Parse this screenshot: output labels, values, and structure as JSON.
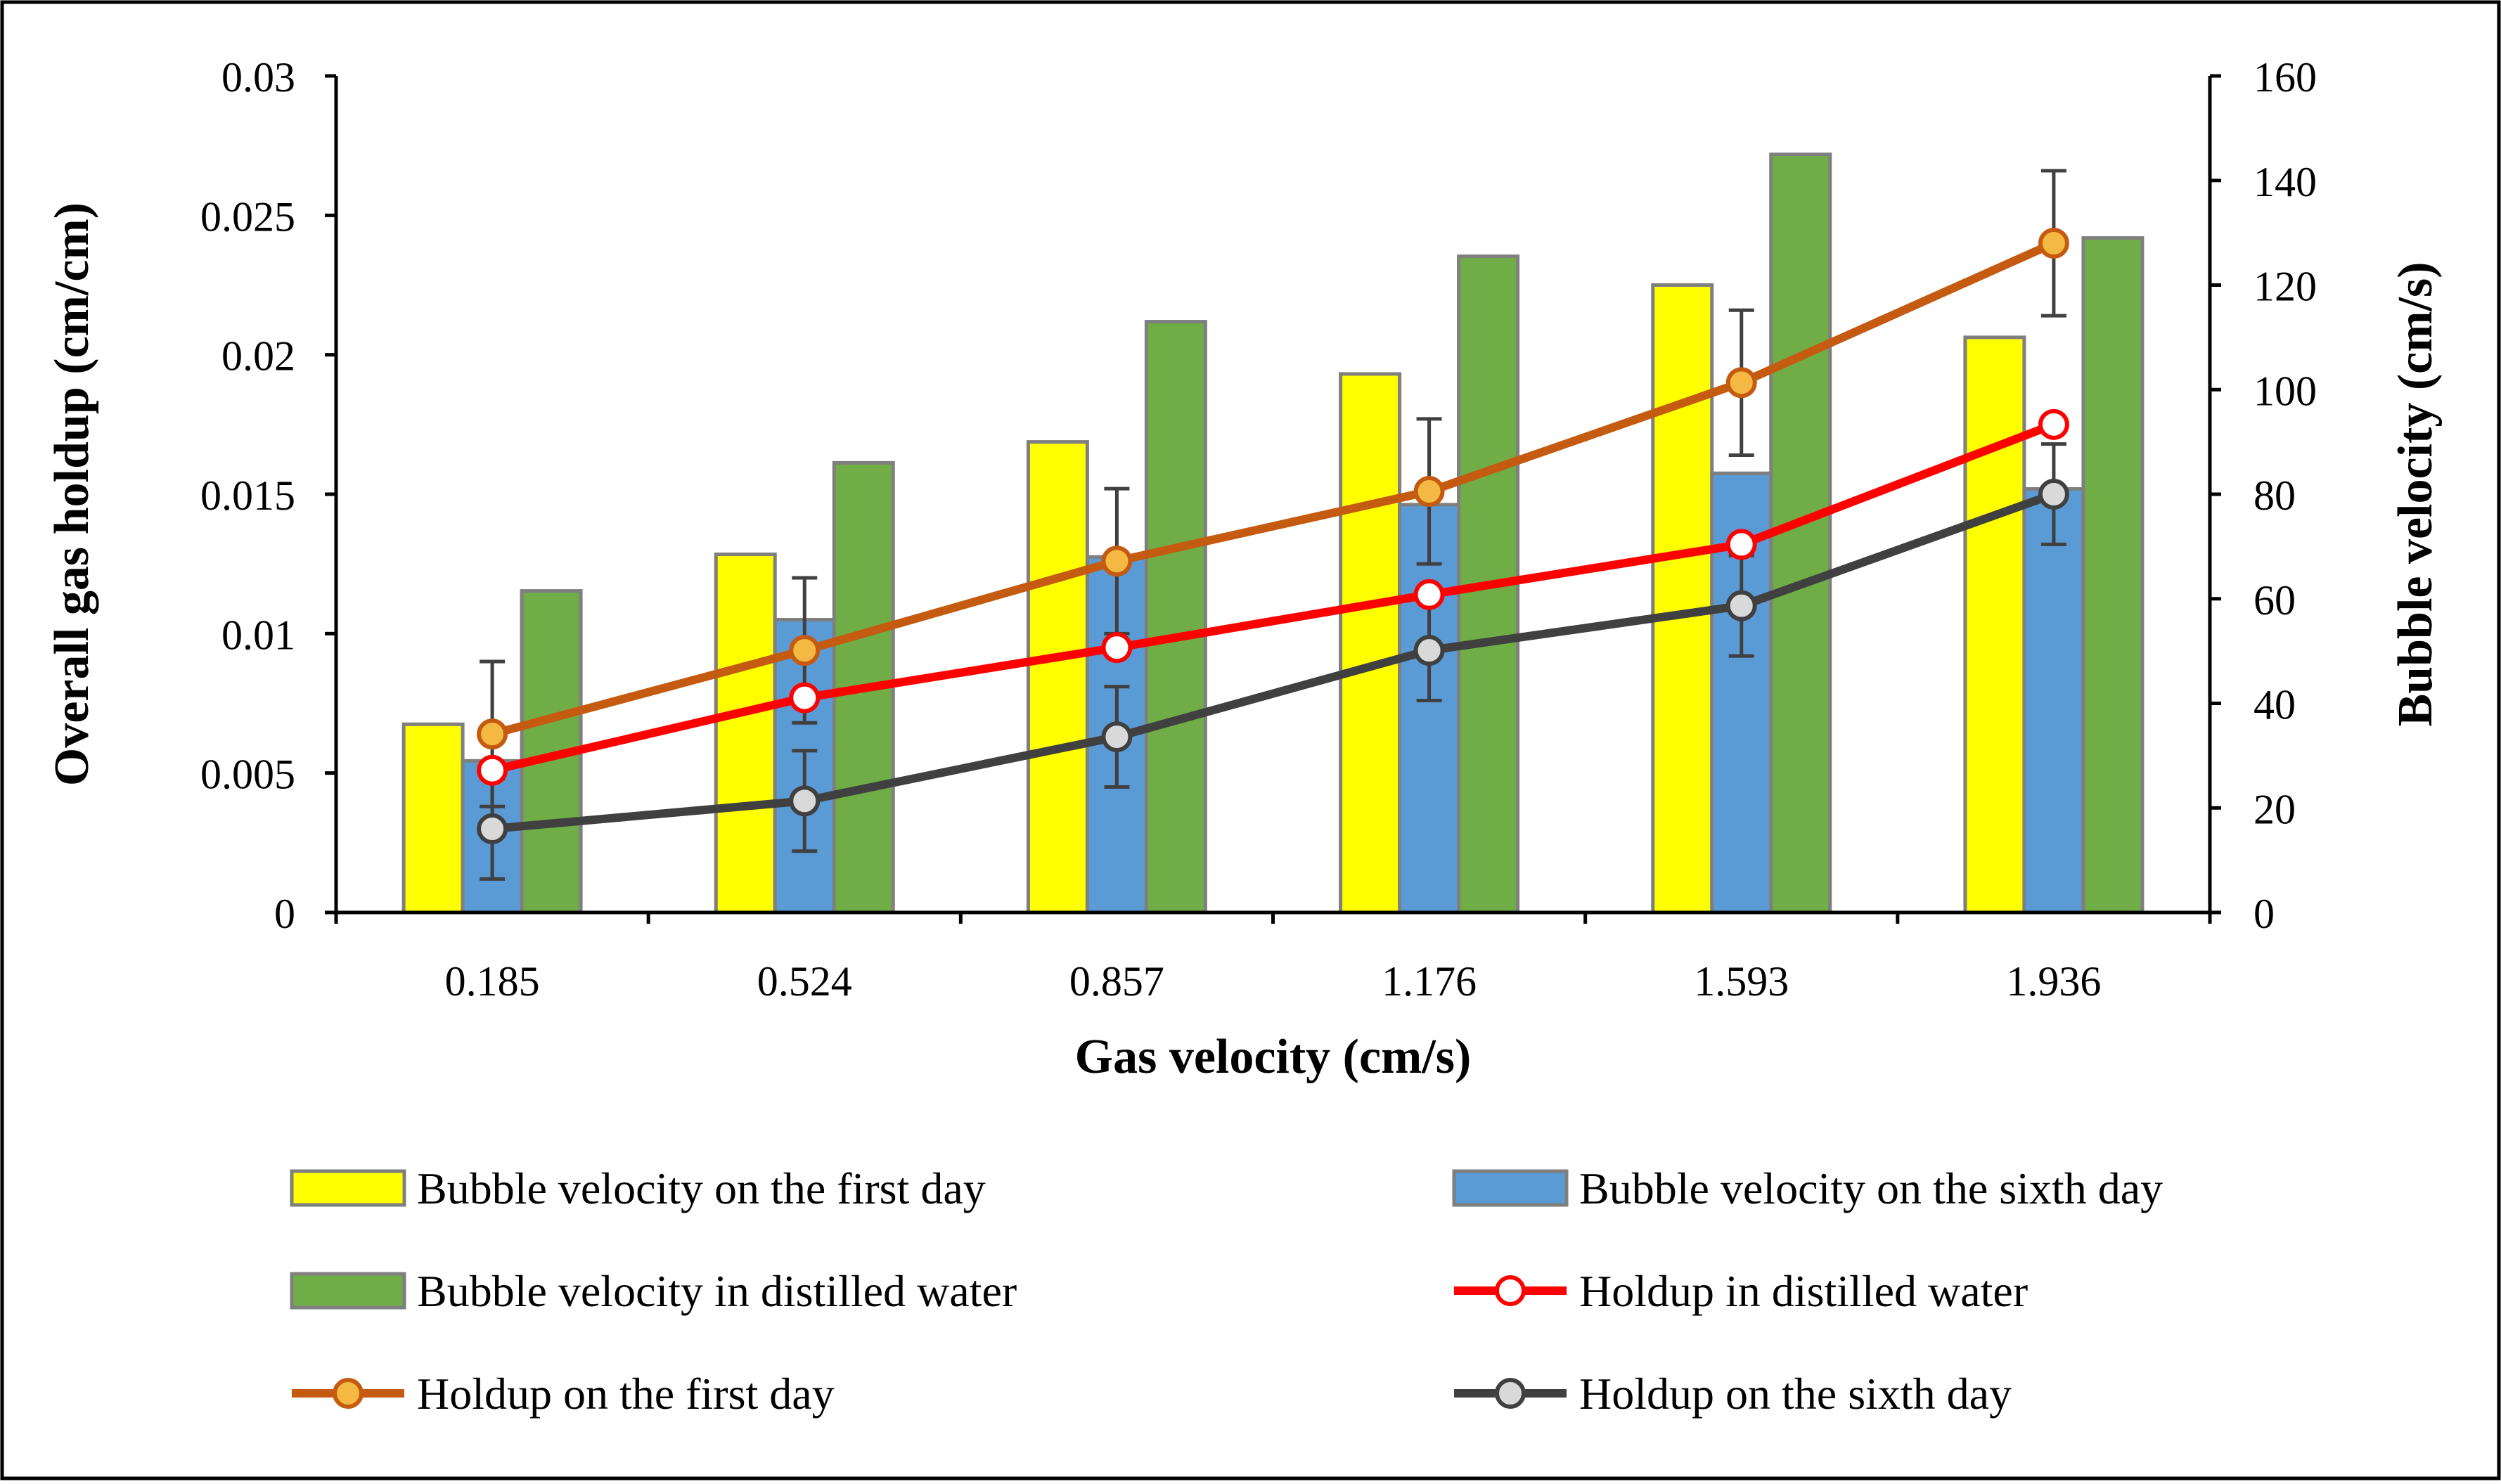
{
  "chart_data": {
    "type": "bar+line",
    "xlabel": "Gas velocity (cm/s)",
    "ylabel_left": "Overall gas holdup (cm/cm)",
    "ylabel_right": "Bubble velocity (cm/s)",
    "ylim_left": [
      0,
      0.03
    ],
    "ylim_right": [
      0,
      160
    ],
    "yticks_left": [
      "0",
      "0.005",
      "0.01",
      "0.015",
      "0.02",
      "0.025",
      "0.03"
    ],
    "yticks_right": [
      "0",
      "20",
      "40",
      "60",
      "80",
      "100",
      "120",
      "140",
      "160"
    ],
    "categories": [
      "0.185",
      "0.524",
      "0.857",
      "1.176",
      "1.593",
      "1.936"
    ],
    "bar_series": [
      {
        "name": "Bubble velocity on the first day",
        "color": "#FFFF00",
        "axis": "right",
        "values": [
          36,
          68.5,
          90,
          103,
          120,
          110
        ]
      },
      {
        "name": "Bubble velocity on the sixth day",
        "color": "#5B9BD5",
        "axis": "right",
        "values": [
          29,
          56,
          68,
          78,
          84,
          81
        ]
      },
      {
        "name": "Bubble velocity in distilled water",
        "color": "#70AD47",
        "axis": "right",
        "values": [
          61.5,
          86,
          113,
          125.5,
          145,
          129
        ]
      }
    ],
    "line_series": [
      {
        "name": "Holdup in distilled water",
        "color": "#FF0000",
        "marker_fill": "#FFFFFF",
        "axis": "left",
        "values": [
          0.0051,
          0.0077,
          0.0095,
          0.0114,
          0.0132,
          0.0175
        ],
        "error": 0
      },
      {
        "name": "Holdup on the first day",
        "color": "#C55A11",
        "marker_fill": "#F4B942",
        "axis": "left",
        "values": [
          0.0064,
          0.0094,
          0.0126,
          0.0151,
          0.019,
          0.024
        ],
        "error": 0.0026
      },
      {
        "name": "Holdup on the sixth day",
        "color": "#404040",
        "marker_fill": "#D9D9D9",
        "axis": "left",
        "values": [
          0.003,
          0.004,
          0.0063,
          0.0094,
          0.011,
          0.015
        ],
        "error": 0.0018
      }
    ],
    "legend": [
      {
        "label": "Bubble velocity on the first day",
        "kind": "bar",
        "color": "#FFFF00"
      },
      {
        "label": "Bubble velocity on the sixth day",
        "kind": "bar",
        "color": "#5B9BD5"
      },
      {
        "label": "Bubble velocity in distilled water",
        "kind": "bar",
        "color": "#70AD47"
      },
      {
        "label": "Holdup in distilled water",
        "kind": "line",
        "color": "#FF0000",
        "marker_fill": "#FFFFFF"
      },
      {
        "label": "Holdup on the first day",
        "kind": "line",
        "color": "#C55A11",
        "marker_fill": "#F4B942"
      },
      {
        "label": "Holdup on the sixth day",
        "kind": "line",
        "color": "#404040",
        "marker_fill": "#D9D9D9"
      }
    ],
    "legend_position": "bottom",
    "grid": false
  }
}
